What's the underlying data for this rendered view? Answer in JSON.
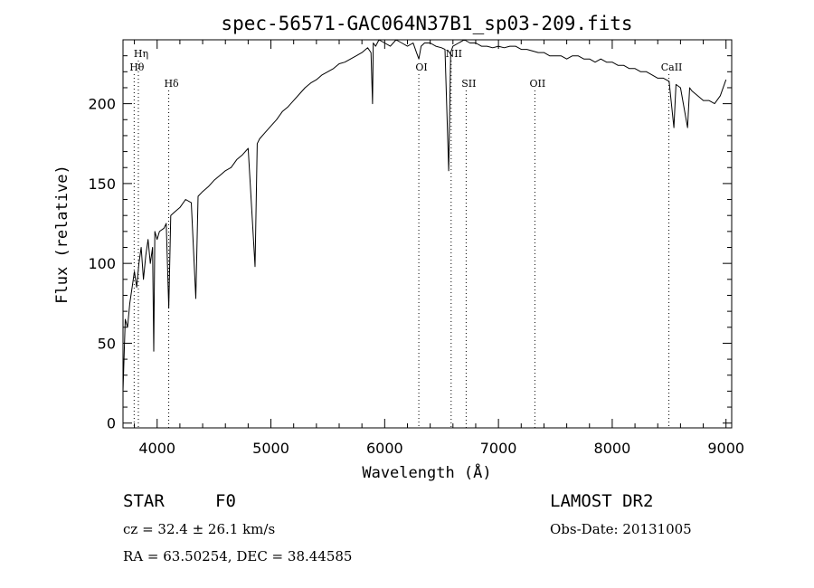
{
  "chart_data": {
    "type": "line",
    "title": "spec-56571-GAC064N37B1_sp03-209.fits",
    "xlabel": "Wavelength (Å)",
    "ylabel": "Flux (relative)",
    "xlim": [
      3700,
      9050
    ],
    "ylim": [
      -3,
      240
    ],
    "x_ticks": [
      4000,
      5000,
      6000,
      7000,
      8000,
      9000
    ],
    "y_ticks": [
      0,
      50,
      100,
      150,
      200
    ],
    "grid": false,
    "series": [
      {
        "x": [
          3700,
          3720,
          3740,
          3760,
          3780,
          3800,
          3820,
          3840,
          3860,
          3880,
          3900,
          3920,
          3940,
          3960,
          3970,
          3980,
          4000,
          4020,
          4060,
          4080,
          4102,
          4120,
          4150,
          4200,
          4250,
          4300,
          4340,
          4360,
          4400,
          4450,
          4500,
          4550,
          4600,
          4650,
          4700,
          4750,
          4800,
          4861,
          4880,
          4900,
          4950,
          5000,
          5050,
          5100,
          5150,
          5200,
          5250,
          5300,
          5350,
          5400,
          5450,
          5500,
          5550,
          5600,
          5650,
          5700,
          5750,
          5800,
          5850,
          5880,
          5893,
          5900,
          5920,
          5950,
          6000,
          6050,
          6100,
          6150,
          6200,
          6250,
          6280,
          6300,
          6320,
          6350,
          6400,
          6450,
          6500,
          6530,
          6563,
          6580,
          6600,
          6650,
          6700,
          6750,
          6800,
          6850,
          6900,
          6950,
          7000,
          7050,
          7100,
          7150,
          7200,
          7250,
          7300,
          7350,
          7400,
          7450,
          7500,
          7550,
          7600,
          7650,
          7700,
          7750,
          7800,
          7850,
          7900,
          7950,
          8000,
          8050,
          8100,
          8150,
          8200,
          8250,
          8300,
          8350,
          8400,
          8450,
          8500,
          8542,
          8560,
          8600,
          8662,
          8680,
          8700,
          8750,
          8800,
          8850,
          8900,
          8950,
          9000
        ],
        "y": [
          20,
          65,
          60,
          75,
          85,
          95,
          85,
          100,
          110,
          90,
          105,
          115,
          100,
          110,
          45,
          120,
          115,
          120,
          122,
          125,
          72,
          130,
          132,
          135,
          140,
          138,
          78,
          142,
          145,
          148,
          152,
          155,
          158,
          160,
          165,
          168,
          172,
          98,
          175,
          178,
          182,
          186,
          190,
          195,
          198,
          202,
          206,
          210,
          213,
          215,
          218,
          220,
          222,
          225,
          226,
          228,
          230,
          232,
          235,
          232,
          200,
          238,
          236,
          240,
          238,
          236,
          240,
          238,
          236,
          238,
          232,
          228,
          236,
          238,
          238,
          236,
          235,
          234,
          158,
          232,
          236,
          238,
          240,
          238,
          238,
          236,
          236,
          235,
          236,
          235,
          236,
          236,
          234,
          234,
          233,
          232,
          232,
          230,
          230,
          230,
          228,
          230,
          230,
          228,
          228,
          226,
          228,
          226,
          226,
          224,
          224,
          222,
          222,
          220,
          220,
          218,
          216,
          216,
          214,
          185,
          212,
          210,
          185,
          210,
          208,
          205,
          202,
          202,
          200,
          205,
          215
        ]
      }
    ],
    "line_markers": [
      {
        "label": "Hη",
        "x": 3835,
        "row": 0
      },
      {
        "label": "Hθ",
        "x": 3798,
        "row": 1
      },
      {
        "label": "Hδ",
        "x": 4102,
        "row": 2
      },
      {
        "label": "OI",
        "x": 6300,
        "row": 1
      },
      {
        "label": "NII",
        "x": 6584,
        "row": 0
      },
      {
        "label": "SII",
        "x": 6716,
        "row": 2
      },
      {
        "label": "OII",
        "x": 7320,
        "row": 2
      },
      {
        "label": "CaII",
        "x": 8498,
        "row": 1
      }
    ]
  },
  "info": {
    "object_type": "STAR",
    "subclass": "F0",
    "survey": "LAMOST DR2",
    "cz": "cz = 32.4 ± 26.1 km/s",
    "obs_date": "Obs-Date: 20131005",
    "coords": "RA =  63.50254, DEC =  38.44585"
  }
}
